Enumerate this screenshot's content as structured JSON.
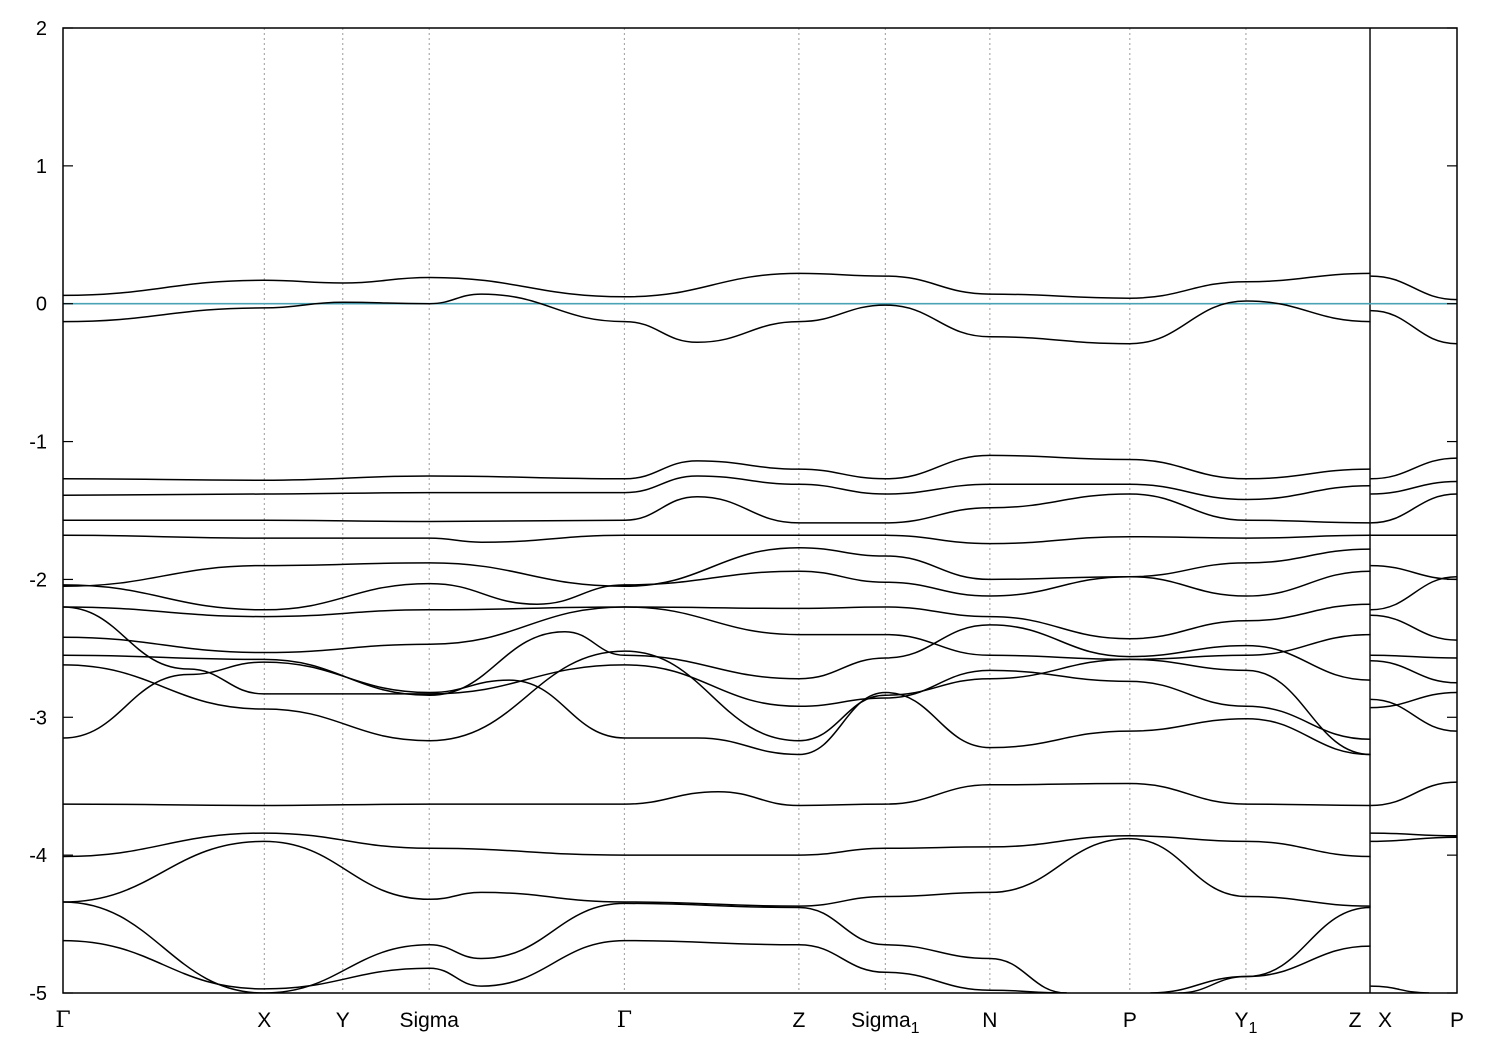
{
  "chart_data": {
    "type": "line",
    "title": "",
    "xlabel": "",
    "ylabel": "",
    "ylim": [
      -5,
      2
    ],
    "y_ticks": [
      -5,
      -4,
      -3,
      -2,
      -1,
      0,
      1,
      2
    ],
    "k_path": [
      {
        "label": "Γ",
        "sub": "",
        "x": 0.0
      },
      {
        "label": "X",
        "sub": "",
        "x": 0.1444
      },
      {
        "label": "Y",
        "sub": "",
        "x": 0.2007
      },
      {
        "label": "Sigma",
        "sub": "",
        "x": 0.2627
      },
      {
        "label": "Γ",
        "sub": "",
        "x": 0.4027
      },
      {
        "label": "Z",
        "sub": "",
        "x": 0.5279
      },
      {
        "label": "Sigma",
        "sub": "1",
        "x": 0.5899
      },
      {
        "label": "N",
        "sub": "",
        "x": 0.6649
      },
      {
        "label": "P",
        "sub": "",
        "x": 0.7653
      },
      {
        "label": "Y",
        "sub": "1",
        "x": 0.8486
      },
      {
        "label": "Z",
        "sub": "",
        "x": 0.9376
      },
      {
        "label": "X",
        "sub": "",
        "x": 0.9376
      },
      {
        "label": "P",
        "sub": "",
        "x": 1.0
      }
    ],
    "fermi_level": 0,
    "fermi_color": "#4aa3b5",
    "line_color": "#000000",
    "series": [
      {
        "x": [
          0,
          0.144,
          0.201,
          0.263,
          0.403,
          0.528,
          0.59,
          0.665,
          0.765,
          0.849,
          0.938
        ],
        "values": [
          0.06,
          0.17,
          0.15,
          0.19,
          0.05,
          0.22,
          0.2,
          0.07,
          0.04,
          0.16,
          0.22
        ]
      },
      {
        "x": [
          0.938,
          1.0
        ],
        "values": [
          0.2,
          0.03
        ]
      },
      {
        "x": [
          0,
          0.144,
          0.201,
          0.263,
          0.3,
          0.403,
          0.455,
          0.528,
          0.59,
          0.665,
          0.765,
          0.849,
          0.938
        ],
        "values": [
          -0.13,
          -0.03,
          0.01,
          0.0,
          0.07,
          -0.13,
          -0.28,
          -0.13,
          -0.01,
          -0.24,
          -0.29,
          0.02,
          -0.13
        ]
      },
      {
        "x": [
          0.938,
          1.0
        ],
        "values": [
          -0.05,
          -0.29
        ]
      },
      {
        "x": [
          0,
          0.144,
          0.263,
          0.403,
          0.455,
          0.528,
          0.59,
          0.665,
          0.765,
          0.849,
          0.938
        ],
        "values": [
          -1.27,
          -1.28,
          -1.25,
          -1.27,
          -1.14,
          -1.2,
          -1.27,
          -1.1,
          -1.13,
          -1.27,
          -1.2
        ]
      },
      {
        "x": [
          0.938,
          1.0
        ],
        "values": [
          -1.27,
          -1.12
        ]
      },
      {
        "x": [
          0,
          0.144,
          0.263,
          0.403,
          0.455,
          0.528,
          0.59,
          0.665,
          0.765,
          0.849,
          0.938
        ],
        "values": [
          -1.39,
          -1.38,
          -1.37,
          -1.37,
          -1.25,
          -1.31,
          -1.38,
          -1.31,
          -1.31,
          -1.42,
          -1.32
        ]
      },
      {
        "x": [
          0.938,
          1.0
        ],
        "values": [
          -1.38,
          -1.29
        ]
      },
      {
        "x": [
          0,
          0.144,
          0.263,
          0.403,
          0.455,
          0.528,
          0.59,
          0.665,
          0.765,
          0.849,
          0.938
        ],
        "values": [
          -1.57,
          -1.57,
          -1.58,
          -1.57,
          -1.4,
          -1.59,
          -1.59,
          -1.48,
          -1.38,
          -1.57,
          -1.59
        ]
      },
      {
        "x": [
          0.938,
          1.0
        ],
        "values": [
          -1.59,
          -1.38
        ]
      },
      {
        "x": [
          0,
          0.144,
          0.263,
          0.3,
          0.403,
          0.528,
          0.59,
          0.665,
          0.765,
          0.849,
          0.938,
          1.0
        ],
        "values": [
          -1.68,
          -1.7,
          -1.7,
          -1.73,
          -1.68,
          -1.68,
          -1.68,
          -1.74,
          -1.69,
          -1.7,
          -1.68,
          -1.68
        ]
      },
      {
        "x": [
          0,
          0.144,
          0.263,
          0.403,
          0.528,
          0.59,
          0.665,
          0.765,
          0.849,
          0.938
        ],
        "values": [
          -2.05,
          -1.9,
          -1.88,
          -2.05,
          -1.77,
          -1.83,
          -2.0,
          -1.98,
          -1.88,
          -1.78
        ]
      },
      {
        "x": [
          0.938,
          1.0
        ],
        "values": [
          -1.9,
          -2.0
        ]
      },
      {
        "x": [
          0,
          0.144,
          0.263,
          0.34,
          0.403,
          0.528,
          0.59,
          0.665,
          0.765,
          0.849,
          0.938
        ],
        "values": [
          -2.04,
          -2.22,
          -2.03,
          -2.18,
          -2.04,
          -1.94,
          -2.02,
          -2.12,
          -1.98,
          -2.12,
          -1.94
        ]
      },
      {
        "x": [
          0.938,
          1.0
        ],
        "values": [
          -2.22,
          -1.98
        ]
      },
      {
        "x": [
          0,
          0.144,
          0.263,
          0.403,
          0.528,
          0.59,
          0.665,
          0.765,
          0.849,
          0.938
        ],
        "values": [
          -2.2,
          -2.27,
          -2.22,
          -2.2,
          -2.21,
          -2.2,
          -2.27,
          -2.43,
          -2.3,
          -2.18
        ]
      },
      {
        "x": [
          0.938,
          1.0
        ],
        "values": [
          -2.26,
          -2.44
        ]
      },
      {
        "x": [
          0,
          0.144,
          0.263,
          0.403,
          0.528,
          0.59,
          0.665,
          0.765,
          0.849,
          0.938
        ],
        "values": [
          -2.42,
          -2.53,
          -2.47,
          -2.2,
          -2.4,
          -2.4,
          -2.55,
          -2.58,
          -2.55,
          -2.4
        ]
      },
      {
        "x": [
          0.938,
          1.0
        ],
        "values": [
          -2.55,
          -2.57
        ]
      },
      {
        "x": [
          0,
          0.144,
          0.263,
          0.36,
          0.403,
          0.528,
          0.59,
          0.665,
          0.765,
          0.849,
          0.938
        ],
        "values": [
          -2.55,
          -2.58,
          -2.84,
          -2.38,
          -2.55,
          -2.72,
          -2.57,
          -2.33,
          -2.56,
          -2.48,
          -2.73
        ]
      },
      {
        "x": [
          0.938,
          1.0
        ],
        "values": [
          -2.59,
          -2.75
        ]
      },
      {
        "x": [
          0,
          0.09,
          0.144,
          0.263,
          0.403,
          0.528,
          0.59,
          0.665,
          0.765,
          0.849,
          0.938
        ],
        "values": [
          -2.2,
          -2.65,
          -2.83,
          -2.83,
          -2.62,
          -2.92,
          -2.86,
          -2.66,
          -2.74,
          -2.92,
          -3.16
        ]
      },
      {
        "x": [
          0.938,
          1.0
        ],
        "values": [
          -2.93,
          -2.82
        ]
      },
      {
        "x": [
          0,
          0.144,
          0.263,
          0.403,
          0.528,
          0.59,
          0.665,
          0.765,
          0.849,
          0.938
        ],
        "values": [
          -2.62,
          -2.94,
          -3.17,
          -2.52,
          -3.17,
          -2.84,
          -2.72,
          -2.58,
          -2.66,
          -3.27
        ]
      },
      {
        "x": [
          0.938,
          1.0
        ],
        "values": [
          -2.87,
          -3.1
        ]
      },
      {
        "x": [
          0,
          0.09,
          0.144,
          0.263,
          0.32,
          0.403,
          0.455,
          0.528,
          0.59,
          0.665,
          0.765,
          0.849,
          0.938
        ],
        "values": [
          -3.15,
          -2.69,
          -2.6,
          -2.82,
          -2.73,
          -3.15,
          -3.15,
          -3.27,
          -2.82,
          -3.22,
          -3.1,
          -3.01,
          -3.27
        ]
      },
      {
        "x": [
          0,
          0.144,
          0.263,
          0.403,
          0.47,
          0.528,
          0.59,
          0.665,
          0.765,
          0.849,
          0.938
        ],
        "values": [
          -3.63,
          -3.64,
          -3.63,
          -3.63,
          -3.54,
          -3.64,
          -3.63,
          -3.49,
          -3.48,
          -3.63,
          -3.64
        ]
      },
      {
        "x": [
          0.938,
          1.0
        ],
        "values": [
          -3.64,
          -3.47
        ]
      },
      {
        "x": [
          0,
          0.144,
          0.263,
          0.403,
          0.528,
          0.59,
          0.665,
          0.765,
          0.849,
          0.938
        ],
        "values": [
          -4.01,
          -3.84,
          -3.95,
          -4.0,
          -4.0,
          -3.95,
          -3.94,
          -3.86,
          -3.9,
          -4.01
        ]
      },
      {
        "x": [
          0.938,
          1.0
        ],
        "values": [
          -3.84,
          -3.86
        ]
      },
      {
        "x": [
          0,
          0.144,
          0.263,
          0.3,
          0.403,
          0.528,
          0.59,
          0.665,
          0.765,
          0.849,
          0.938
        ],
        "values": [
          -4.34,
          -3.9,
          -4.32,
          -4.27,
          -4.34,
          -4.37,
          -4.3,
          -4.27,
          -3.88,
          -4.3,
          -4.37
        ]
      },
      {
        "x": [
          0.938,
          1.0
        ],
        "values": [
          -3.9,
          -3.87
        ]
      },
      {
        "x": [
          0,
          0.144,
          0.263,
          0.3,
          0.403,
          0.528,
          0.59,
          0.665,
          0.72
        ],
        "values": [
          -4.34,
          -5.0,
          -4.65,
          -4.75,
          -4.35,
          -4.38,
          -4.65,
          -4.75,
          -5.0
        ]
      },
      {
        "x": [
          0.8,
          0.849,
          0.938
        ],
        "values": [
          -5.0,
          -4.88,
          -4.38
        ]
      },
      {
        "x": [
          0,
          0.144,
          0.263,
          0.3,
          0.403,
          0.528,
          0.59,
          0.665,
          0.72
        ],
        "values": [
          -4.62,
          -4.97,
          -4.82,
          -4.95,
          -4.62,
          -4.65,
          -4.85,
          -4.98,
          -5.0
        ]
      },
      {
        "x": [
          0.78,
          0.849,
          0.938
        ],
        "values": [
          -5.0,
          -4.88,
          -4.66
        ]
      },
      {
        "x": [
          0.938,
          0.98
        ],
        "values": [
          -4.95,
          -5.0
        ]
      }
    ]
  }
}
